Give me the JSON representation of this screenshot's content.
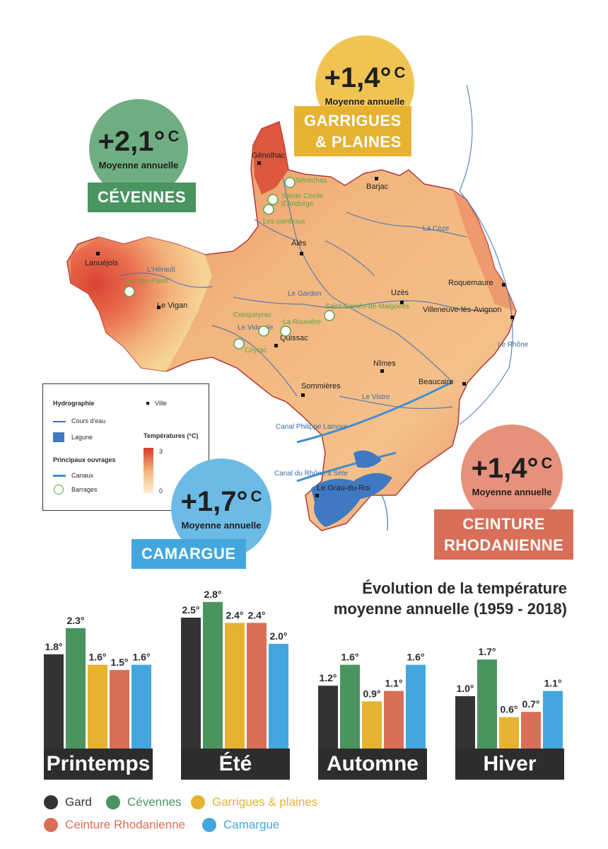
{
  "map": {
    "towns": [
      "Génolhac",
      "Barjac",
      "Alès",
      "Lanuéjols",
      "Le Vigan",
      "Uzès",
      "Roquemaure",
      "Villeneuve-lès-Avignon",
      "Quissac",
      "Nîmes",
      "Sommières",
      "Beaucaire",
      "Le Grau-du-Roi"
    ],
    "rivers": [
      "La Cèze",
      "L'Hérault",
      "Le Gardon",
      "Le Vidourle",
      "Le Rhône",
      "Le Vistre",
      "Canal Philippe Lamour",
      "Canal du Rhône à Sète"
    ],
    "dams": [
      "Sénéchas",
      "Sainte Cécile d'Andorge",
      "Les cambous",
      "Lac des Pises",
      "Conqueyrac",
      "La Rouvière",
      "Saint-Geniès-de-Malgoirès",
      "Ceyrac"
    ]
  },
  "legend": {
    "hydrographie": "Hydrographie",
    "ville": "Ville",
    "cours_eau": "Cours d'eau",
    "lagune": "Lagune",
    "temperatures": "Températures (°C)",
    "temp_max": "3",
    "temp_min": "0",
    "ouvrages": "Principaux ouvrages",
    "canaux": "Canaux",
    "barrages": "Barrages"
  },
  "regions": {
    "cevennes": {
      "temp": "+2,1°",
      "unit": "C",
      "sub": "Moyenne annuelle",
      "name": "CÉVENNES",
      "color": "#4a9460"
    },
    "garrigues": {
      "temp": "+1,4°",
      "unit": "C",
      "sub": "Moyenne annuelle",
      "name1": "GARRIGUES",
      "name2": "& PLAINES",
      "color": "#e6b230"
    },
    "camargue": {
      "temp": "+1,7°",
      "unit": "C",
      "sub": "Moyenne annuelle",
      "name": "CAMARGUE",
      "color": "#43a7dd"
    },
    "rhodanienne": {
      "temp": "+1,4°",
      "unit": "C",
      "sub": "Moyenne annuelle",
      "name1": "CEINTURE",
      "name2": "RHODANIENNE",
      "color": "#d96f58"
    }
  },
  "chart_data": {
    "type": "bar",
    "title_line1": "Évolution de la température",
    "title_line2": "moyenne annuelle (1959 - 2018)",
    "categories": [
      "Printemps",
      "Été",
      "Automne",
      "Hiver"
    ],
    "series": [
      {
        "name": "Gard",
        "color": "#333333",
        "values": [
          1.8,
          2.5,
          1.2,
          1.0
        ],
        "labels": [
          "1.8°",
          "2.5°",
          "1.2°",
          "1.0°"
        ]
      },
      {
        "name": "Cévennes",
        "color": "#4a9460",
        "values": [
          2.3,
          2.8,
          1.6,
          1.7
        ],
        "labels": [
          "2.3°",
          "2.8°",
          "1.6°",
          "1.7°"
        ]
      },
      {
        "name": "Garrigues & plaines",
        "color": "#e6b230",
        "values": [
          1.6,
          2.4,
          0.9,
          0.6
        ],
        "labels": [
          "1.6°",
          "2.4°",
          "0.9°",
          "0.6°"
        ]
      },
      {
        "name": "Ceinture Rhodanienne",
        "color": "#d96f58",
        "values": [
          1.5,
          2.4,
          1.1,
          0.7
        ],
        "labels": [
          "1.5°",
          "2.4°",
          "1.1°",
          "0.7°"
        ]
      },
      {
        "name": "Camargue",
        "color": "#43a7dd",
        "values": [
          1.6,
          2.0,
          1.6,
          1.1
        ],
        "labels": [
          "1.6°",
          "2.0°",
          "1.6°",
          "1.1°"
        ]
      }
    ]
  }
}
